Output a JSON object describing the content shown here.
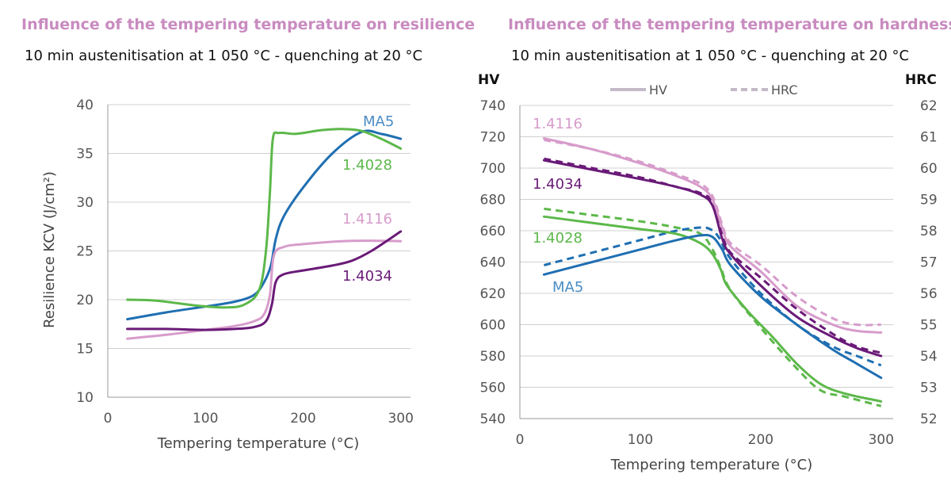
{
  "chart_data": [
    {
      "type": "line",
      "title": "Influence of the tempering temperature on resilience",
      "subtitle": "10 min austenitisation at 1 050 °C - quenching at 20 °C",
      "xlabel": "Tempering temperature (°C)",
      "ylabel": "Resilience KCV (J/cm²)",
      "xlim": [
        0,
        310
      ],
      "ylim": [
        10,
        40
      ],
      "xticks": [
        "0",
        "100",
        "200",
        "300"
      ],
      "yticks": [
        "10",
        "15",
        "20",
        "25",
        "30",
        "35",
        "40"
      ],
      "grid": true,
      "series": [
        {
          "name": "MA5",
          "color": "#1f6fb2",
          "x": [
            20,
            60,
            100,
            130,
            150,
            160,
            167,
            172,
            180,
            200,
            230,
            260,
            280,
            300
          ],
          "y": [
            18,
            18.7,
            19.3,
            19.8,
            20.5,
            21.8,
            23.5,
            26.2,
            28.5,
            31.5,
            35,
            37.2,
            37,
            36.5
          ]
        },
        {
          "name": "1.4028",
          "color": "#5cb84a",
          "x": [
            20,
            50,
            90,
            120,
            140,
            155,
            162,
            166,
            169,
            175,
            190,
            200,
            220,
            240,
            260,
            280,
            300
          ],
          "y": [
            20,
            19.9,
            19.4,
            19.2,
            19.5,
            21,
            25,
            31,
            36.5,
            37.1,
            37,
            37.1,
            37.4,
            37.5,
            37.3,
            36.5,
            35.5
          ]
        },
        {
          "name": "1.4116",
          "color": "#d79ccb",
          "x": [
            20,
            60,
            100,
            130,
            150,
            160,
            166,
            170,
            180,
            200,
            240,
            270,
            300
          ],
          "y": [
            16,
            16.4,
            16.9,
            17.3,
            17.8,
            18.5,
            20.5,
            24.5,
            25.4,
            25.7,
            26,
            26.05,
            26
          ]
        },
        {
          "name": "1.4034",
          "color": "#6a1a78",
          "x": [
            20,
            60,
            100,
            130,
            150,
            162,
            168,
            172,
            180,
            200,
            230,
            250,
            270,
            300
          ],
          "y": [
            17,
            17,
            16.9,
            17,
            17.2,
            17.8,
            19.5,
            21.8,
            22.6,
            23,
            23.5,
            24,
            25,
            27
          ]
        }
      ],
      "labels": [
        {
          "text": "MA5",
          "series": "MA5"
        },
        {
          "text": "1.4028",
          "series": "1.4028"
        },
        {
          "text": "1.4116",
          "series": "1.4116"
        },
        {
          "text": "1.4034",
          "series": "1.4034"
        }
      ]
    },
    {
      "type": "line",
      "title": "Influence of the tempering temperature on hardness",
      "subtitle": "10 min austenitisation at 1 050 °C - quenching at 20 °C",
      "xlabel": "Tempering temperature (°C)",
      "ylabel_left": "HV",
      "ylabel_right": "HRC",
      "xlim": [
        0,
        310
      ],
      "ylim_left": [
        540,
        740
      ],
      "ylim_right": [
        52,
        62
      ],
      "xticks": [
        "0",
        "100",
        "200",
        "300"
      ],
      "yticks_left": [
        "540",
        "560",
        "580",
        "600",
        "620",
        "640",
        "660",
        "680",
        "700",
        "720",
        "740"
      ],
      "yticks_right": [
        "52",
        "53",
        "54",
        "55",
        "56",
        "57",
        "58",
        "59",
        "60",
        "61",
        "62"
      ],
      "grid": true,
      "legend": [
        {
          "text": "HV",
          "style": "solid"
        },
        {
          "text": "HRC",
          "style": "dashed"
        }
      ],
      "series_hv": [
        {
          "name": "1.4116",
          "color": "#d79ccb",
          "x": [
            20,
            60,
            100,
            130,
            150,
            160,
            168,
            175,
            200,
            230,
            260,
            280,
            300
          ],
          "y": [
            719,
            712,
            703,
            695,
            688,
            680,
            662,
            650,
            634,
            612,
            600,
            596,
            595
          ]
        },
        {
          "name": "1.4034",
          "color": "#6a1a78",
          "x": [
            20,
            60,
            100,
            130,
            150,
            160,
            168,
            175,
            200,
            230,
            260,
            280,
            300
          ],
          "y": [
            705,
            699,
            693,
            688,
            683,
            676,
            655,
            645,
            625,
            605,
            592,
            585,
            580
          ]
        },
        {
          "name": "1.4028",
          "color": "#5cb84a",
          "x": [
            20,
            60,
            100,
            130,
            150,
            160,
            167,
            172,
            190,
            210,
            230,
            250,
            270,
            300
          ],
          "y": [
            669,
            665,
            661,
            658,
            652,
            645,
            635,
            625,
            608,
            592,
            575,
            562,
            556,
            551
          ]
        },
        {
          "name": "MA5",
          "color": "#1f6fb2",
          "x": [
            20,
            60,
            100,
            130,
            150,
            160,
            168,
            175,
            200,
            230,
            260,
            280,
            300
          ],
          "y": [
            632,
            640,
            648,
            654,
            657,
            656,
            648,
            638,
            618,
            600,
            584,
            575,
            566
          ]
        }
      ],
      "series_hrc": [
        {
          "name": "1.4116",
          "color": "#d79ccb",
          "x": [
            20,
            60,
            100,
            130,
            150,
            160,
            168,
            175,
            200,
            230,
            260,
            280,
            300
          ],
          "y": [
            60.9,
            60.6,
            60.2,
            59.8,
            59.5,
            59.1,
            58.2,
            57.6,
            56.9,
            55.9,
            55.2,
            55.0,
            55.0
          ]
        },
        {
          "name": "1.4034",
          "color": "#6a1a78",
          "x": [
            20,
            60,
            100,
            130,
            150,
            160,
            168,
            175,
            200,
            230,
            260,
            280,
            300
          ],
          "y": [
            60.3,
            60.0,
            59.7,
            59.4,
            59.2,
            58.9,
            57.9,
            57.3,
            56.5,
            55.5,
            54.7,
            54.3,
            54.1
          ]
        },
        {
          "name": "1.4028",
          "color": "#5cb84a",
          "x": [
            20,
            60,
            100,
            130,
            150,
            160,
            167,
            175,
            200,
            230,
            250,
            270,
            300
          ],
          "y": [
            58.7,
            58.5,
            58.3,
            58.1,
            57.9,
            57.4,
            56.8,
            56.1,
            54.9,
            53.6,
            52.9,
            52.7,
            52.4
          ]
        },
        {
          "name": "MA5",
          "color": "#1f6fb2",
          "x": [
            20,
            60,
            100,
            130,
            150,
            158,
            165,
            175,
            200,
            230,
            260,
            280,
            300
          ],
          "y": [
            56.9,
            57.3,
            57.7,
            58.0,
            58.1,
            58.05,
            57.8,
            57.1,
            56.0,
            55.0,
            54.3,
            54.0,
            53.7
          ]
        }
      ],
      "labels": [
        {
          "text": "1.4116",
          "series": "1.4116"
        },
        {
          "text": "1.4034",
          "series": "1.4034"
        },
        {
          "text": "1.4028",
          "series": "1.4028"
        },
        {
          "text": "MA5",
          "series": "MA5"
        }
      ]
    }
  ]
}
